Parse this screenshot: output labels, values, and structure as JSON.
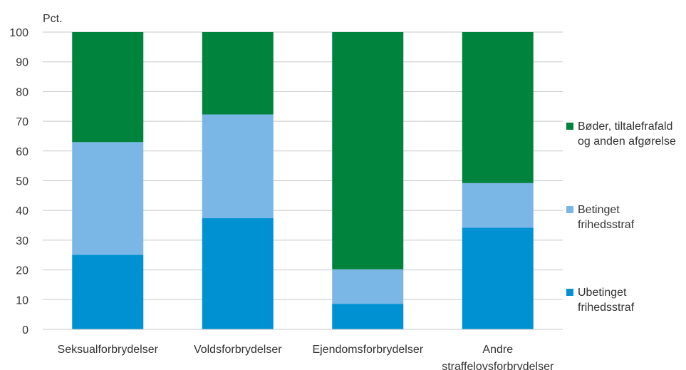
{
  "chart_data": {
    "type": "bar",
    "stacked": true,
    "unit_label": "Pct.",
    "ylim": [
      0,
      100
    ],
    "yticks": [
      0,
      10,
      20,
      30,
      40,
      50,
      60,
      70,
      80,
      90,
      100
    ],
    "grid": true,
    "legend_position": "right",
    "categories": [
      [
        "Seksualforbrydelser"
      ],
      [
        "Voldsforbrydelser"
      ],
      [
        "Ejendomsforbrydelser"
      ],
      [
        "Andre",
        "straffelovsforbrydelser"
      ]
    ],
    "series": [
      {
        "name": [
          "Ubetinget",
          "frihedsstraf"
        ],
        "color": "#0091d2",
        "values": [
          25.1,
          37.4,
          8.6,
          34.2
        ]
      },
      {
        "name": [
          "Betinget",
          "frihedsstraf"
        ],
        "color": "#7ab6e6",
        "values": [
          37.9,
          34.9,
          11.6,
          15.0
        ]
      },
      {
        "name": [
          "Bøder, tiltalefrafald",
          "og anden afgørelse"
        ],
        "color": "#00843d",
        "values": [
          37.0,
          27.7,
          79.8,
          50.8
        ]
      }
    ]
  }
}
